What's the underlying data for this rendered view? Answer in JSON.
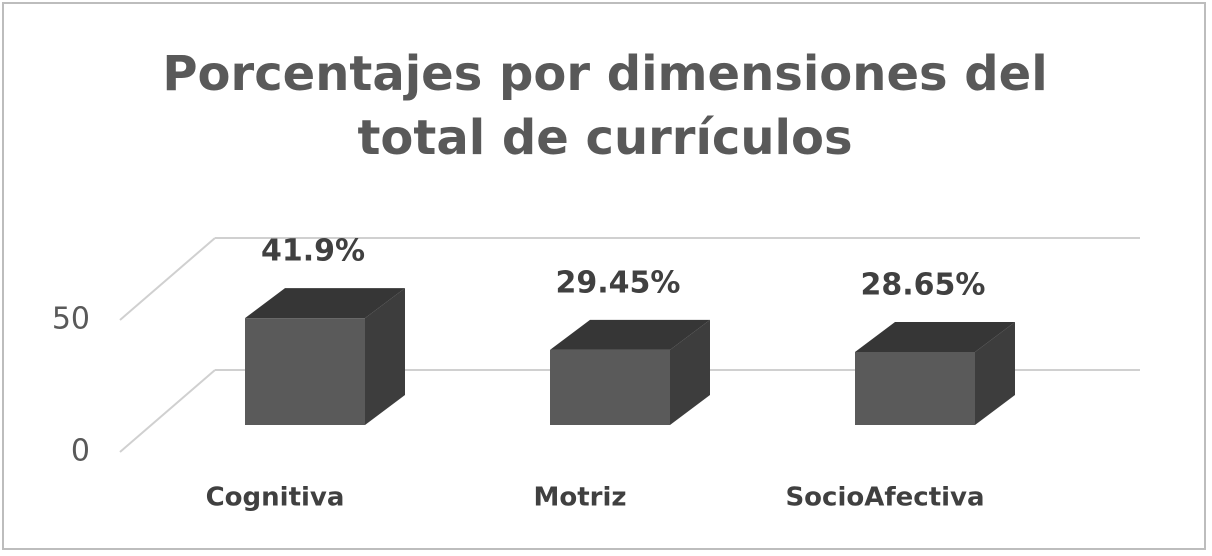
{
  "chart_data": {
    "type": "bar3d",
    "title": "Porcentajes por dimensiones del total de currículos",
    "categories": [
      "Cognitiva",
      "Motriz",
      "SocioAfectiva"
    ],
    "values": [
      41.9,
      29.45,
      28.65
    ],
    "value_labels": [
      "41.9%",
      "29.45%",
      "28.65%"
    ],
    "color": "#5a5a5a",
    "ylim": [
      0,
      50
    ],
    "yticks": [
      0,
      50
    ],
    "grid": true
  }
}
